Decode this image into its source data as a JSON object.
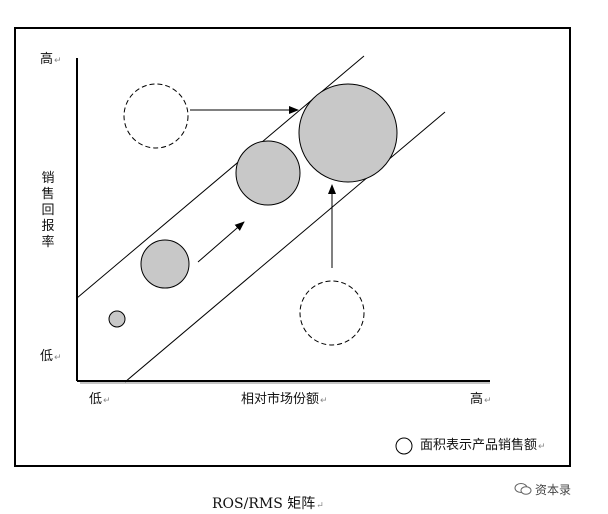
{
  "axes": {
    "y_high": "高",
    "y_low": "低",
    "y_title": "销售回报率",
    "x_low": "低",
    "x_title": "相对市场份额",
    "x_high": "高"
  },
  "legend": {
    "text": "面积表示产品销售额"
  },
  "caption": {
    "text": "ROS/RMS 矩阵"
  },
  "watermark": {
    "text": "资本录"
  },
  "colors": {
    "circle_fill": "#c8c8c8",
    "line": "#000000",
    "frame": "#000000"
  },
  "diagram": {
    "products": [
      {
        "name": "product-small",
        "style": "filled"
      },
      {
        "name": "product-medium",
        "style": "filled"
      },
      {
        "name": "product-large",
        "style": "filled"
      },
      {
        "name": "product-largest",
        "style": "filled"
      },
      {
        "name": "product-left-top",
        "style": "dashed"
      },
      {
        "name": "product-bottom-right",
        "style": "dashed"
      }
    ]
  }
}
